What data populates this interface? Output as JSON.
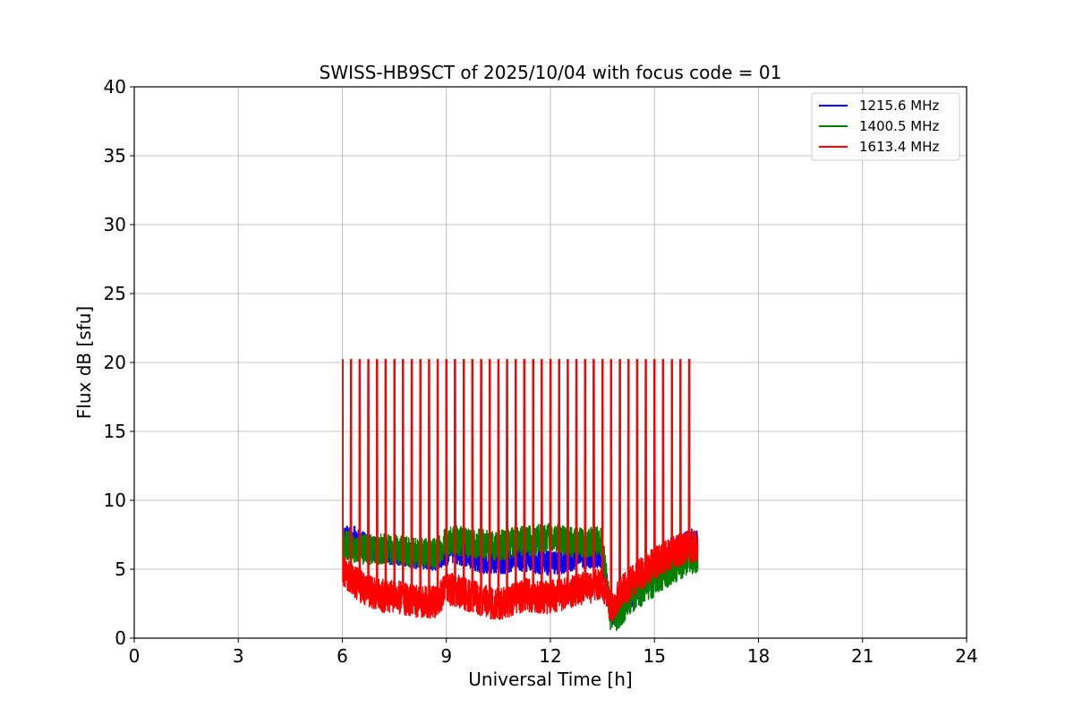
{
  "chart_data": {
    "type": "line",
    "title": "SWISS-HB9SCT of 2025/10/04 with focus code = 01",
    "xlabel": "Universal Time [h]",
    "ylabel": "Flux dB [sfu]",
    "xlim": [
      0,
      24
    ],
    "ylim": [
      0,
      40
    ],
    "xticks": [
      0,
      3,
      6,
      9,
      12,
      15,
      18,
      21,
      24
    ],
    "yticks": [
      0,
      5,
      10,
      15,
      20,
      25,
      30,
      35,
      40
    ],
    "grid": true,
    "legend_position": "top-right",
    "calibration_spike_level": 20.2,
    "calibration_spikes_x": [
      6.0,
      6.25,
      6.5,
      6.75,
      7.0,
      7.25,
      7.5,
      7.75,
      8.0,
      8.25,
      8.5,
      8.75,
      9.0,
      9.25,
      9.5,
      9.75,
      10.0,
      10.25,
      10.5,
      10.75,
      11.0,
      11.25,
      11.5,
      11.75,
      12.0,
      12.25,
      12.5,
      12.75,
      13.0,
      13.25,
      13.5,
      13.75,
      14.0,
      14.25,
      14.5,
      14.75,
      15.0,
      15.25,
      15.5,
      15.75,
      16.0
    ],
    "series": [
      {
        "name": "1215.6 MHz",
        "color": "#0000ff",
        "x": [
          6.0,
          6.25,
          6.5,
          6.75,
          7.0,
          7.25,
          7.5,
          7.75,
          8.0,
          8.25,
          8.5,
          8.75,
          9.0,
          9.25,
          9.5,
          9.75,
          10.0,
          10.25,
          10.5,
          10.75,
          11.0,
          11.25,
          11.5,
          11.75,
          12.0,
          12.25,
          12.5,
          12.75,
          13.0,
          13.25,
          13.5,
          13.75,
          14.0,
          14.25,
          14.5,
          14.75,
          15.0,
          15.25,
          15.5,
          15.75,
          16.0,
          16.25
        ],
        "y": [
          7.2,
          7.4,
          7.0,
          6.6,
          6.4,
          6.3,
          6.2,
          6.1,
          6.0,
          5.9,
          5.8,
          5.8,
          6.2,
          6.3,
          6.1,
          5.9,
          5.6,
          5.5,
          5.5,
          5.6,
          5.8,
          5.7,
          5.6,
          5.5,
          5.4,
          5.5,
          5.7,
          5.8,
          5.9,
          6.0,
          6.0,
          1.8,
          2.2,
          2.9,
          3.4,
          4.0,
          4.8,
          5.6,
          6.2,
          6.6,
          7.0,
          7.1
        ],
        "noise": 0.9
      },
      {
        "name": "1400.5 MHz",
        "color": "#008000",
        "x": [
          6.0,
          6.25,
          6.5,
          6.75,
          7.0,
          7.25,
          7.5,
          7.75,
          8.0,
          8.25,
          8.5,
          8.75,
          9.0,
          9.25,
          9.5,
          9.75,
          10.0,
          10.25,
          10.5,
          10.75,
          11.0,
          11.25,
          11.5,
          11.75,
          12.0,
          12.25,
          12.5,
          12.75,
          13.0,
          13.25,
          13.5,
          13.75,
          14.0,
          14.25,
          14.5,
          14.75,
          15.0,
          15.25,
          15.5,
          15.75,
          16.0,
          16.25
        ],
        "y": [
          6.8,
          6.6,
          6.5,
          6.4,
          6.4,
          6.5,
          6.4,
          6.3,
          6.2,
          6.2,
          6.1,
          6.2,
          7.0,
          7.1,
          7.0,
          6.9,
          6.8,
          6.8,
          6.7,
          6.8,
          7.0,
          7.1,
          7.0,
          7.2,
          7.5,
          7.2,
          7.0,
          6.9,
          6.9,
          7.0,
          7.0,
          1.2,
          1.8,
          2.6,
          3.2,
          3.6,
          4.1,
          4.6,
          5.0,
          5.3,
          5.6,
          5.9
        ],
        "noise": 1.1
      },
      {
        "name": "1613.4 MHz",
        "color": "#ff0000",
        "x": [
          6.0,
          6.25,
          6.5,
          6.75,
          7.0,
          7.25,
          7.5,
          7.75,
          8.0,
          8.25,
          8.5,
          8.75,
          9.0,
          9.25,
          9.5,
          9.75,
          10.0,
          10.25,
          10.5,
          10.75,
          11.0,
          11.25,
          11.5,
          11.75,
          12.0,
          12.25,
          12.5,
          12.75,
          13.0,
          13.25,
          13.5,
          13.75,
          14.0,
          14.25,
          14.5,
          14.75,
          15.0,
          15.25,
          15.5,
          15.75,
          16.0,
          16.25
        ],
        "y": [
          4.8,
          4.3,
          3.8,
          3.4,
          3.2,
          3.0,
          3.0,
          2.9,
          2.7,
          2.6,
          2.6,
          2.7,
          3.6,
          3.5,
          3.2,
          3.0,
          2.8,
          2.6,
          2.4,
          2.7,
          2.8,
          3.2,
          3.0,
          2.9,
          3.0,
          3.1,
          3.3,
          3.5,
          3.6,
          3.8,
          4.0,
          2.2,
          3.2,
          3.8,
          4.5,
          4.9,
          5.4,
          5.8,
          6.2,
          6.4,
          6.6,
          6.8
        ],
        "noise": 1.2
      }
    ]
  }
}
